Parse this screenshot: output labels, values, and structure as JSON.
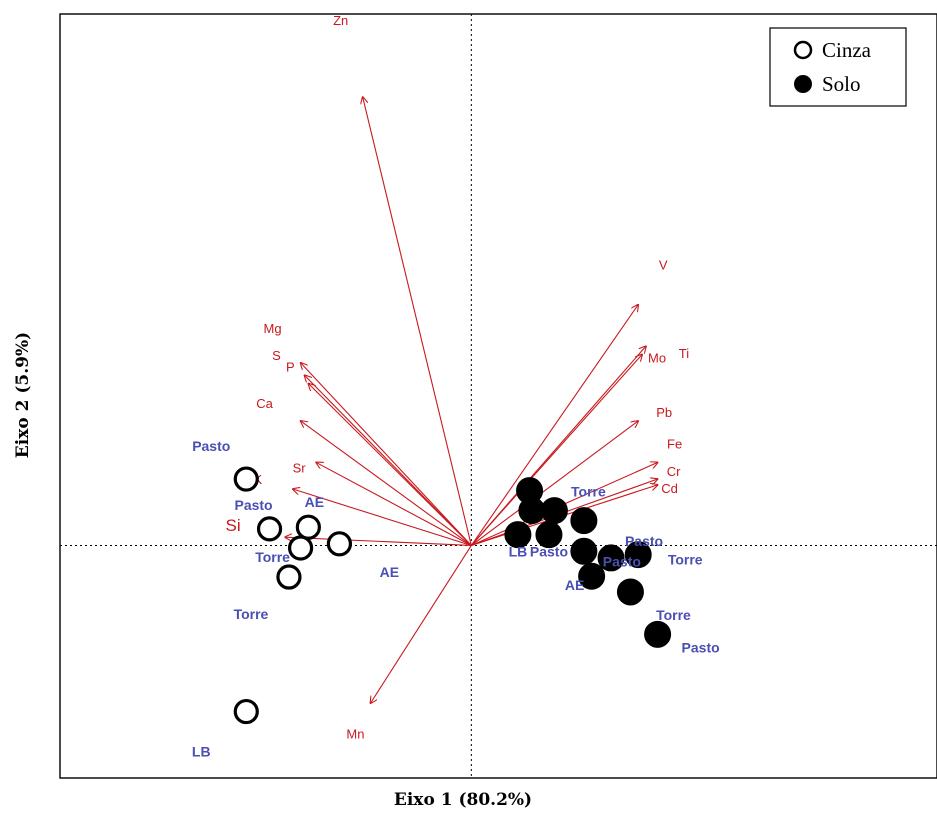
{
  "chart_data": {
    "type": "scatter",
    "subtype": "pca-biplot",
    "xlabel": "Eixo 1 (80.2%)",
    "ylabel": "Eixo 2 (5.9%)",
    "grid": false,
    "reference_lines": "dotted lines at x=0 and y=0",
    "xlim": [
      -5.3,
      6.0
    ],
    "ylim": [
      -2.8,
      6.4
    ],
    "legend": {
      "placement": "top-right",
      "entries": [
        {
          "label": "Cinza",
          "marker": "open-circle"
        },
        {
          "label": "Solo",
          "marker": "filled-circle"
        }
      ]
    },
    "colors": {
      "loadings": "#c8191e",
      "site_labels": "#4a4fb3",
      "points": "#000000",
      "axes": "#000000"
    },
    "loadings": [
      {
        "name": "Zn",
        "x": -1.4,
        "y": 5.4
      },
      {
        "name": "Mg",
        "x": -2.2,
        "y": 2.2
      },
      {
        "name": "S",
        "x": -2.15,
        "y": 2.05
      },
      {
        "name": "P",
        "x": -2.1,
        "y": 1.95
      },
      {
        "name": "Ca",
        "x": -2.2,
        "y": 1.5
      },
      {
        "name": "Sr",
        "x": -2.0,
        "y": 1.0
      },
      {
        "name": "K",
        "x": -2.3,
        "y": 0.68
      },
      {
        "name": "Si",
        "x": -2.4,
        "y": 0.1
      },
      {
        "name": "Mn",
        "x": -1.3,
        "y": -1.9
      },
      {
        "name": "V",
        "x": 2.15,
        "y": 2.9
      },
      {
        "name": "Ti",
        "x": 2.25,
        "y": 2.4
      },
      {
        "name": "Mo",
        "x": 2.2,
        "y": 2.3
      },
      {
        "name": "Pb",
        "x": 2.15,
        "y": 1.5
      },
      {
        "name": "Fe",
        "x": 2.4,
        "y": 1.0
      },
      {
        "name": "Cr",
        "x": 2.4,
        "y": 0.8
      },
      {
        "name": "Cd",
        "x": 2.4,
        "y": 0.73
      }
    ],
    "series": [
      {
        "name": "Cinza",
        "points": [
          {
            "label": "Pasto",
            "x": -2.9,
            "y": 0.8
          },
          {
            "label": "Pasto",
            "x": -2.6,
            "y": 0.2
          },
          {
            "label": "AE",
            "x": -2.1,
            "y": 0.22
          },
          {
            "label": "Torre",
            "x": -2.2,
            "y": -0.03
          },
          {
            "label": "AE",
            "x": -1.7,
            "y": 0.02
          },
          {
            "label": "Torre",
            "x": -2.35,
            "y": -0.38
          },
          {
            "label": "LB",
            "x": -2.9,
            "y": -2.0
          }
        ]
      },
      {
        "name": "Solo",
        "points": [
          {
            "label": "",
            "x": 0.75,
            "y": 0.66
          },
          {
            "label": "",
            "x": 0.78,
            "y": 0.42
          },
          {
            "label": "Torre",
            "x": 1.07,
            "y": 0.42
          },
          {
            "label": "",
            "x": 1.45,
            "y": 0.3
          },
          {
            "label": "LB",
            "x": 0.6,
            "y": 0.13
          },
          {
            "label": "Pasto",
            "x": 1.0,
            "y": 0.13
          },
          {
            "label": "Pasto",
            "x": 1.45,
            "y": -0.07
          },
          {
            "label": "Pasto",
            "x": 1.8,
            "y": -0.15
          },
          {
            "label": "AE",
            "x": 1.55,
            "y": -0.37
          },
          {
            "label": "Torre",
            "x": 2.05,
            "y": -0.56
          },
          {
            "label": "Pasto",
            "x": 2.4,
            "y": -1.07
          },
          {
            "label": "Torre",
            "x": 2.15,
            "y": -0.11
          }
        ]
      }
    ],
    "text": {
      "loading_label_left_group": [
        "Zn",
        "Mg",
        "S",
        "P",
        "Ca",
        "Sr",
        "K",
        "Si",
        "Mn"
      ],
      "loading_label_right_group": [
        "V",
        "Ti",
        "Mo",
        "Pb",
        "Fe",
        "Cr",
        "Cd"
      ]
    }
  }
}
